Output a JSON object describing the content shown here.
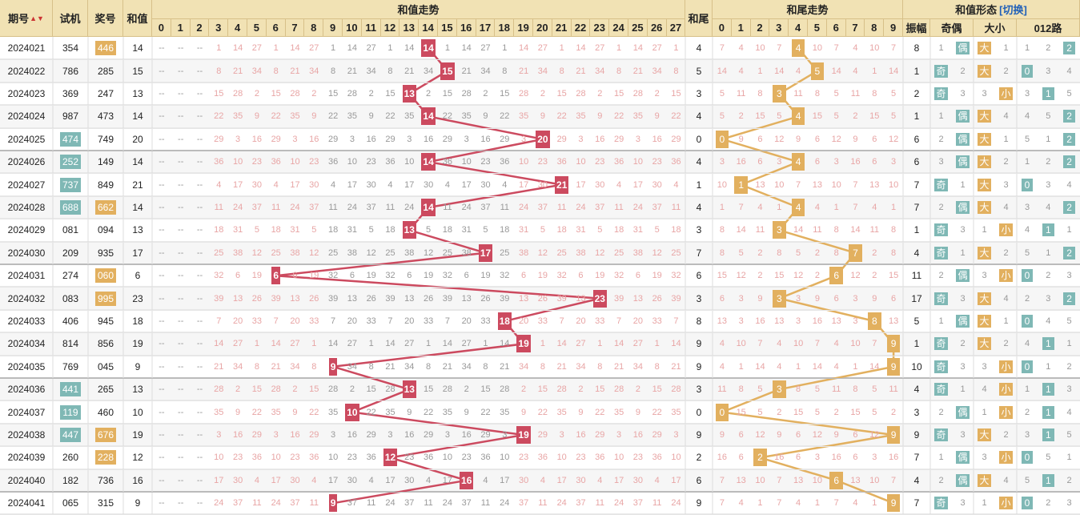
{
  "colors": {
    "header_bg": "#f1e2b4",
    "red": "#cc4a5f",
    "gold": "#e2b05f",
    "teal": "#7fb8b5"
  },
  "headers": {
    "period": "期号",
    "sort_icon": "▲▼",
    "test": "试机",
    "prize": "奖号",
    "sum": "和值",
    "sum_trend": "和值走势",
    "tail": "和尾",
    "tail_trend": "和尾走势",
    "shape": "和值形态",
    "toggle": "[切换]",
    "amplitude": "振幅",
    "odd_even": "奇偶",
    "big_small": "大小",
    "route": "012路"
  },
  "sum_cols": [
    "0",
    "1",
    "2",
    "3",
    "4",
    "5",
    "6",
    "7",
    "8",
    "9",
    "10",
    "11",
    "12",
    "13",
    "14",
    "15",
    "16",
    "17",
    "18",
    "19",
    "20",
    "21",
    "22",
    "23",
    "24",
    "25",
    "26",
    "27"
  ],
  "tail_cols": [
    "0",
    "1",
    "2",
    "3",
    "4",
    "5",
    "6",
    "7",
    "8",
    "9"
  ],
  "labels": {
    "odd": "奇",
    "even": "偶",
    "big": "大",
    "small": "小",
    "r0": "0",
    "r1": "1",
    "r2": "2"
  },
  "rows": [
    {
      "period": "2024021",
      "test": "354",
      "prize": "446",
      "prize_hl": "gold",
      "test_hl": "",
      "sum": 14,
      "tail": 4,
      "amp": "8",
      "oe": "even",
      "bs": "big",
      "route": 2
    },
    {
      "period": "2024022",
      "test": "786",
      "prize": "285",
      "prize_hl": "",
      "test_hl": "",
      "sum": 15,
      "tail": 5,
      "amp": "1",
      "oe": "odd",
      "bs": "big",
      "route": 0
    },
    {
      "period": "2024023",
      "test": "369",
      "prize": "247",
      "prize_hl": "",
      "test_hl": "",
      "sum": 13,
      "tail": 3,
      "amp": "2",
      "oe": "odd",
      "bs": "small",
      "route": 1
    },
    {
      "period": "2024024",
      "test": "987",
      "prize": "473",
      "prize_hl": "",
      "test_hl": "",
      "sum": 14,
      "tail": 4,
      "amp": "1",
      "oe": "even",
      "bs": "big",
      "route": 2
    },
    {
      "period": "2024025",
      "test": "474",
      "prize": "749",
      "prize_hl": "",
      "test_hl": "teal",
      "sum": 20,
      "tail": 0,
      "amp": "6",
      "oe": "even",
      "bs": "big",
      "route": 2
    },
    {
      "period": "2024026",
      "test": "252",
      "prize": "149",
      "prize_hl": "",
      "test_hl": "teal",
      "sum": 14,
      "tail": 4,
      "amp": "6",
      "oe": "even",
      "bs": "big",
      "route": 2
    },
    {
      "period": "2024027",
      "test": "737",
      "prize": "849",
      "prize_hl": "",
      "test_hl": "teal",
      "sum": 21,
      "tail": 1,
      "amp": "7",
      "oe": "odd",
      "bs": "big",
      "route": 0
    },
    {
      "period": "2024028",
      "test": "688",
      "prize": "662",
      "prize_hl": "gold",
      "test_hl": "teal",
      "sum": 14,
      "tail": 4,
      "amp": "7",
      "oe": "even",
      "bs": "big",
      "route": 2
    },
    {
      "period": "2024029",
      "test": "081",
      "prize": "094",
      "prize_hl": "",
      "test_hl": "",
      "sum": 13,
      "tail": 3,
      "amp": "1",
      "oe": "odd",
      "bs": "small",
      "route": 1
    },
    {
      "period": "2024030",
      "test": "209",
      "prize": "935",
      "prize_hl": "",
      "test_hl": "",
      "sum": 17,
      "tail": 7,
      "amp": "4",
      "oe": "odd",
      "bs": "big",
      "route": 2
    },
    {
      "period": "2024031",
      "test": "274",
      "prize": "060",
      "prize_hl": "gold",
      "test_hl": "",
      "sum": 6,
      "tail": 6,
      "amp": "11",
      "oe": "even",
      "bs": "small",
      "route": 0
    },
    {
      "period": "2024032",
      "test": "083",
      "prize": "995",
      "prize_hl": "gold",
      "test_hl": "",
      "sum": 23,
      "tail": 3,
      "amp": "17",
      "oe": "odd",
      "bs": "big",
      "route": 2
    },
    {
      "period": "2024033",
      "test": "406",
      "prize": "945",
      "prize_hl": "",
      "test_hl": "",
      "sum": 18,
      "tail": 8,
      "amp": "5",
      "oe": "even",
      "bs": "big",
      "route": 0
    },
    {
      "period": "2024034",
      "test": "814",
      "prize": "856",
      "prize_hl": "",
      "test_hl": "",
      "sum": 19,
      "tail": 9,
      "amp": "1",
      "oe": "odd",
      "bs": "big",
      "route": 1
    },
    {
      "period": "2024035",
      "test": "769",
      "prize": "045",
      "prize_hl": "",
      "test_hl": "",
      "sum": 9,
      "tail": 9,
      "amp": "10",
      "oe": "odd",
      "bs": "small",
      "route": 0
    },
    {
      "period": "2024036",
      "test": "441",
      "prize": "265",
      "prize_hl": "",
      "test_hl": "teal",
      "sum": 13,
      "tail": 3,
      "amp": "4",
      "oe": "odd",
      "bs": "small",
      "route": 1
    },
    {
      "period": "2024037",
      "test": "119",
      "prize": "460",
      "prize_hl": "",
      "test_hl": "teal",
      "sum": 10,
      "tail": 0,
      "amp": "3",
      "oe": "even",
      "bs": "small",
      "route": 1
    },
    {
      "period": "2024038",
      "test": "447",
      "prize": "676",
      "prize_hl": "gold",
      "test_hl": "teal",
      "sum": 19,
      "tail": 9,
      "amp": "9",
      "oe": "odd",
      "bs": "big",
      "route": 1
    },
    {
      "period": "2024039",
      "test": "260",
      "prize": "228",
      "prize_hl": "gold",
      "test_hl": "",
      "sum": 12,
      "tail": 2,
      "amp": "7",
      "oe": "even",
      "bs": "small",
      "route": 0
    },
    {
      "period": "2024040",
      "test": "182",
      "prize": "736",
      "prize_hl": "",
      "test_hl": "",
      "sum": 16,
      "tail": 6,
      "amp": "4",
      "oe": "even",
      "bs": "big",
      "route": 1
    },
    {
      "period": "2024041",
      "test": "065",
      "prize": "315",
      "prize_hl": "",
      "test_hl": "",
      "sum": 9,
      "tail": 9,
      "amp": "7",
      "oe": "odd",
      "bs": "small",
      "route": 0
    }
  ]
}
